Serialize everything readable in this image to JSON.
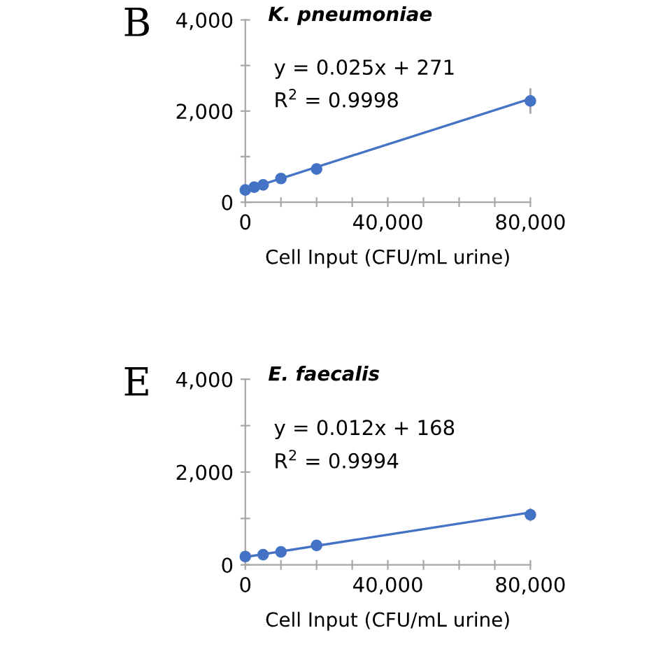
{
  "chart_data": [
    {
      "type": "scatter",
      "title": "K. pneumoniae",
      "xlabel": "Cell Input (CFU/mL urine)",
      "annotations": [
        "B",
        "y = 0.025x + 271",
        "R$^{2}$ = 0.9998"
      ],
      "series": [
        {
          "color": "#4472c4",
          "marker": "circle",
          "x": [
            0,
            2500,
            5000,
            10000,
            20000,
            80000
          ],
          "values": [
            270,
            330,
            380,
            520,
            730,
            2220
          ],
          "errors": [
            null,
            null,
            null,
            40,
            110,
            280
          ]
        },
        {
          "type": "line",
          "color": "#4472c4",
          "x": [
            0,
            80000
          ],
          "values": [
            270,
            2270
          ]
        }
      ],
      "xlim": [
        0,
        80000
      ],
      "ylim": [
        0,
        4000
      ],
      "xticks": [
        0,
        {
          "value": 10000,
          "label": null
        },
        {
          "value": 20000,
          "label": null
        },
        {
          "value": 30000,
          "label": null
        },
        {
          "value": 40000,
          "label": "40,000"
        },
        {
          "value": 50000,
          "label": null
        },
        {
          "value": 60000,
          "label": null
        },
        {
          "value": 70000,
          "label": null
        },
        {
          "value": 80000,
          "label": "80,000"
        }
      ],
      "yticks": [
        0,
        {
          "value": 1000,
          "label": null
        },
        {
          "value": 2000,
          "label": "2,000"
        },
        {
          "value": 3000,
          "label": null
        },
        {
          "value": 4000,
          "label": "4,000"
        }
      ],
      "grid": false,
      "legend": false
    },
    {
      "type": "scatter",
      "title": "E. faecalis",
      "xlabel": "Cell Input (CFU/mL urine)",
      "annotations": [
        "E",
        "y = 0.012x + 168",
        "R$^{2}$ = 0.9994"
      ],
      "series": [
        {
          "color": "#4472c4",
          "marker": "circle",
          "x": [
            0,
            5000,
            10000,
            20000,
            80000
          ],
          "values": [
            180,
            220,
            280,
            420,
            1080
          ],
          "errors": [
            null,
            null,
            null,
            40,
            140
          ]
        },
        {
          "type": "line",
          "color": "#4472c4",
          "x": [
            0,
            80000
          ],
          "values": [
            170,
            1130
          ]
        }
      ],
      "xlim": [
        0,
        80000
      ],
      "ylim": [
        0,
        4000
      ],
      "xticks": [
        0,
        {
          "value": 10000,
          "label": null
        },
        {
          "value": 20000,
          "label": null
        },
        {
          "value": 30000,
          "label": null
        },
        {
          "value": 40000,
          "label": "40,000"
        },
        {
          "value": 50000,
          "label": null
        },
        {
          "value": 60000,
          "label": null
        },
        {
          "value": 70000,
          "label": null
        },
        {
          "value": 80000,
          "label": "80,000"
        }
      ],
      "yticks": [
        0,
        {
          "value": 1000,
          "label": null
        },
        {
          "value": 2000,
          "label": "2,000"
        },
        {
          "value": 3000,
          "label": null
        },
        {
          "value": 4000,
          "label": "4,000"
        }
      ],
      "grid": false,
      "legend": false
    }
  ]
}
